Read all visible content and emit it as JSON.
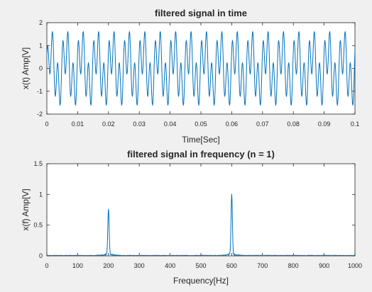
{
  "chart_data": [
    {
      "type": "line",
      "title": "filtered signal in time",
      "xlabel": "Time[Sec]",
      "ylabel": "x(t) Amp[V]",
      "xlim": [
        0,
        0.1
      ],
      "ylim": [
        -2,
        2
      ],
      "x_ticks": [
        "0",
        "0.01",
        "0.02",
        "0.03",
        "0.04",
        "0.05",
        "0.06",
        "0.07",
        "0.08",
        "0.09",
        "0.1"
      ],
      "y_ticks": [
        "2",
        "1",
        "0",
        "-1",
        "-2"
      ],
      "grid": false,
      "color": "#0072bd",
      "series": [
        {
          "components": [
            {
              "frequency_hz": 200,
              "amplitude": 0.8
            },
            {
              "frequency_hz": 600,
              "amplitude": 1.0
            }
          ],
          "t_range": [
            0,
            0.1
          ]
        }
      ]
    },
    {
      "type": "line",
      "title": "filtered signal in frequency (n = 1)",
      "xlabel": "Frequency[Hz]",
      "ylabel": "x(f) Amp[V]",
      "xlim": [
        0,
        1000
      ],
      "ylim": [
        0,
        1.5
      ],
      "x_ticks": [
        "0",
        "100",
        "200",
        "300",
        "400",
        "500",
        "600",
        "700",
        "800",
        "900",
        "1000"
      ],
      "y_ticks": [
        "1.5",
        "1",
        "0.5",
        "0"
      ],
      "grid": false,
      "color": "#0072bd",
      "series": [
        {
          "peaks": [
            {
              "frequency_hz": 200,
              "amplitude": 0.76
            },
            {
              "frequency_hz": 600,
              "amplitude": 1.0
            }
          ]
        }
      ]
    }
  ]
}
